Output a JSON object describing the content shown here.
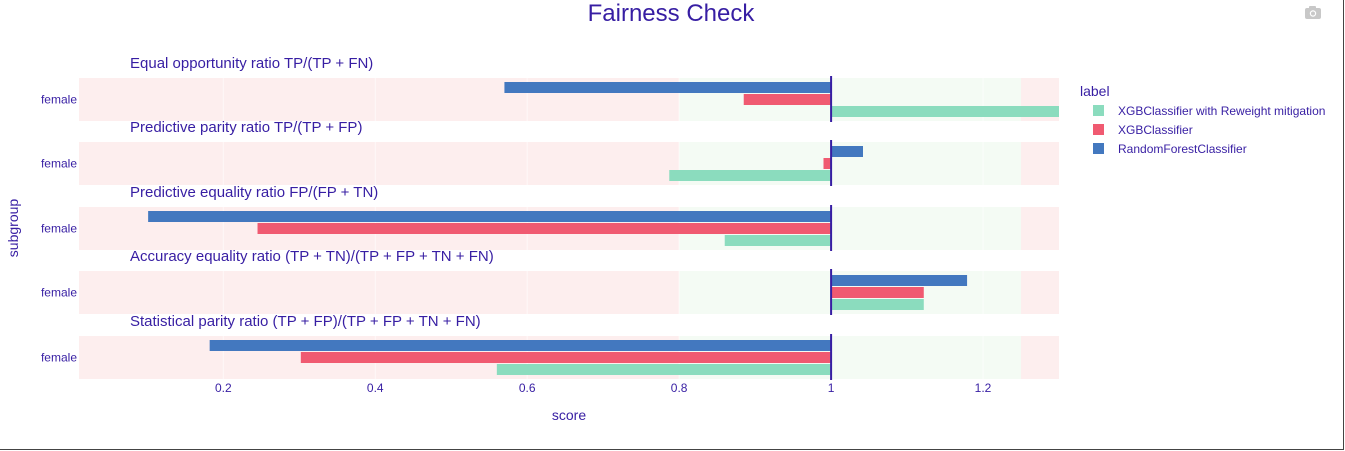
{
  "chart_data": {
    "type": "bar",
    "orientation": "horizontal",
    "title": "Fairness Check",
    "xlabel": "score",
    "ylabel": "subgroup",
    "xlim": [
      0.01,
      1.3
    ],
    "x_ticks": [
      "0.2",
      "0.4",
      "0.6",
      "0.8",
      "1",
      "1.2"
    ],
    "x_tick_values": [
      0.2,
      0.4,
      0.6,
      0.8,
      1.0,
      1.2
    ],
    "bands": {
      "red_below": 0.8,
      "green_from": 0.8,
      "green_to": 1.25,
      "red_above": 1.25
    },
    "colors": {
      "band_red": "#fdeeee",
      "band_green": "#f4fbf4",
      "reference_line": "#371ea3",
      "text": "#371ea3"
    },
    "legend": {
      "title": "label",
      "position": "right"
    },
    "series": [
      {
        "name": "XGBClassifier with Reweight mitigation",
        "color": "#8bdcbe"
      },
      {
        "name": "XGBClassifier",
        "color": "#f05a71"
      },
      {
        "name": "RandomForestClassifier",
        "color": "#4378bf"
      }
    ],
    "panels": [
      {
        "metric": "Equal opportunity ratio",
        "formula": "TP/(TP + FN)",
        "subgroup": "female",
        "values": [
          1.3,
          0.885,
          0.57
        ]
      },
      {
        "metric": "Predictive parity ratio",
        "formula": "TP/(TP + FP)",
        "subgroup": "female",
        "values": [
          0.787,
          0.99,
          1.042
        ]
      },
      {
        "metric": "Predictive equality ratio",
        "formula": "FP/(FP + TN)",
        "subgroup": "female",
        "values": [
          0.86,
          0.245,
          0.101
        ]
      },
      {
        "metric": "Accuracy equality ratio",
        "formula": "(TP + TN)/(TP + FP + TN + FN)",
        "subgroup": "female",
        "values": [
          1.122,
          1.122,
          1.179
        ]
      },
      {
        "metric": "Statistical parity ratio",
        "formula": "(TP + FP)/(TP + FP + TN + FN)",
        "subgroup": "female",
        "values": [
          0.56,
          0.302,
          0.182
        ]
      }
    ]
  }
}
